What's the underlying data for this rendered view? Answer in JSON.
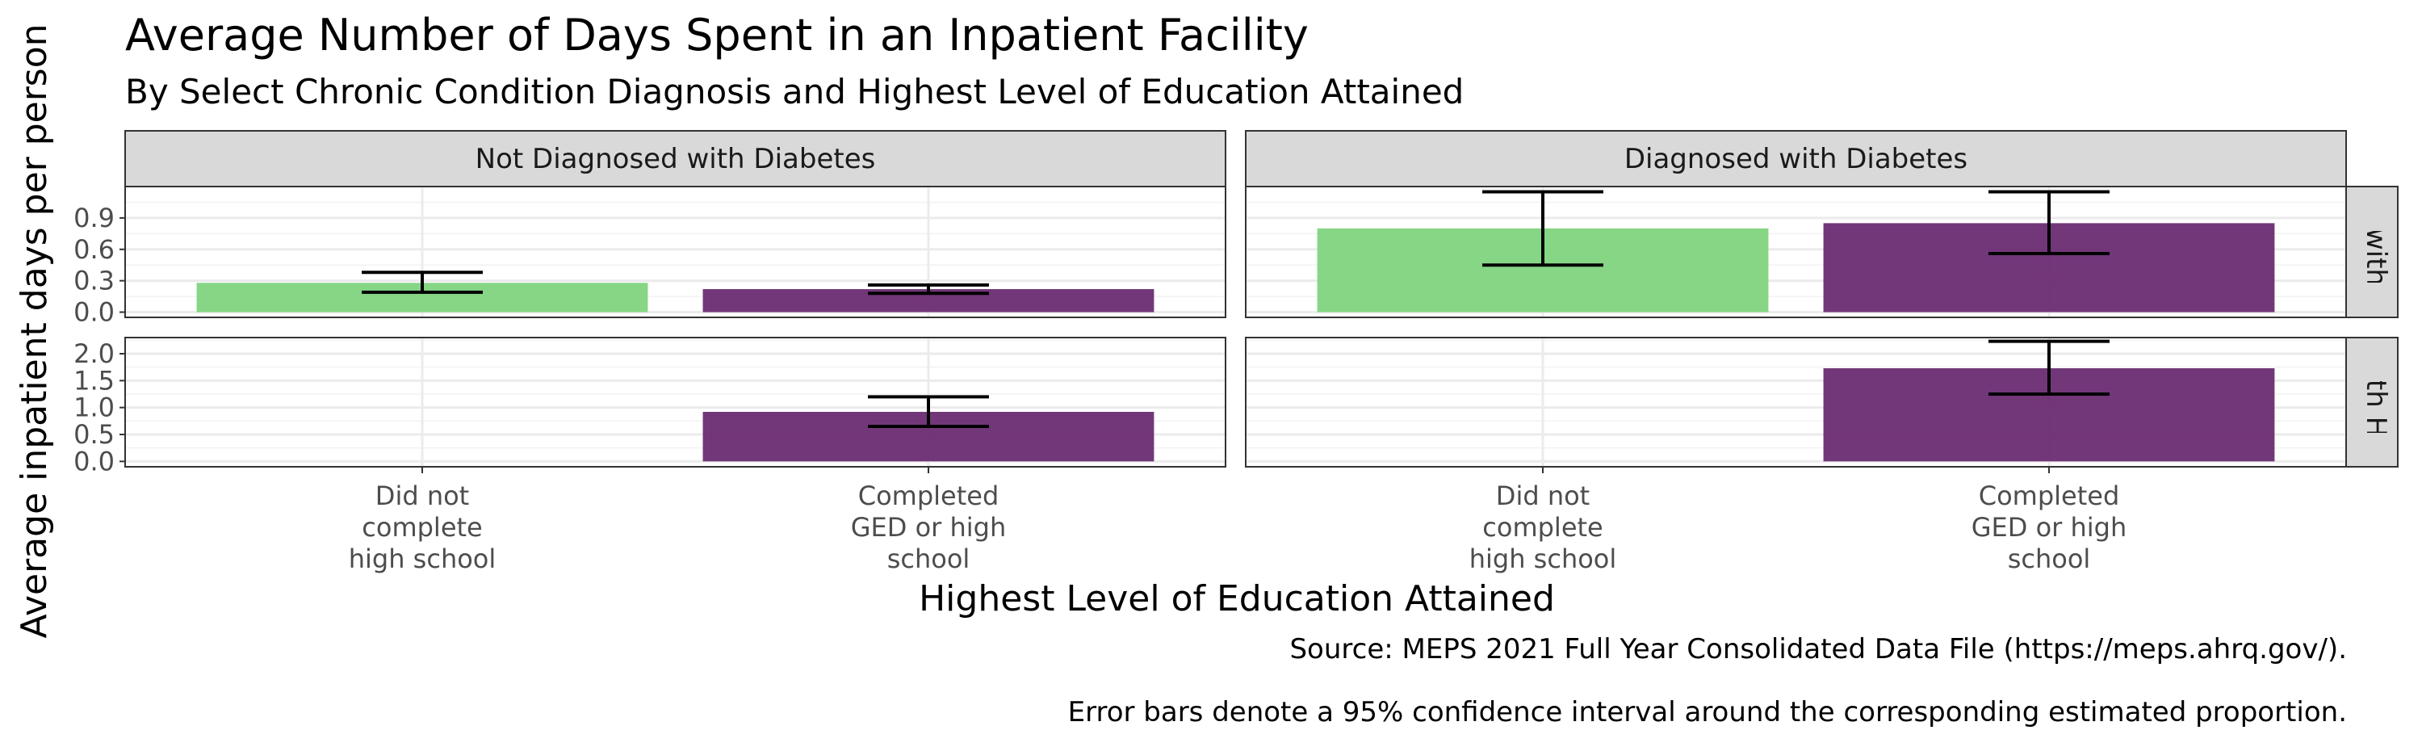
{
  "title": "Average Number of Days Spent in an Inpatient Facility",
  "subtitle": "By Select Chronic Condition Diagnosis and Highest Level of Education Attained",
  "colors": {
    "did_not_complete": "#7fd47f",
    "completed": "#6a2c72"
  },
  "chart_data": {
    "type": "bar",
    "xlabel": "Highest Level of Education Attained",
    "ylabel": "Average inpatient days per person",
    "categories": [
      "Did not\ncomplete\nhigh school",
      "Completed\nGED or high\nschool"
    ],
    "columns": [
      "Not Diagnosed with Diabetes",
      "Diagnosed with Diabetes"
    ],
    "rows": [
      {
        "label": "Not Diagnosed with Heart Disease",
        "strip_visible": "ed with H",
        "ylim": [
          -0.05,
          1.2
        ],
        "ticks": [
          0.0,
          0.3,
          0.6,
          0.9
        ],
        "tick_labels": [
          "0.0",
          "0.3",
          "0.6",
          "0.9"
        ]
      },
      {
        "label": "Diagnosed with Heart Disease",
        "strip_visible": "with Hea",
        "ylim": [
          -0.1,
          2.3
        ],
        "ticks": [
          0.0,
          0.5,
          1.0,
          1.5,
          2.0
        ],
        "tick_labels": [
          "0.0",
          "0.5",
          "1.0",
          "1.5",
          "2.0"
        ]
      }
    ],
    "panels": [
      {
        "row": 0,
        "col": 0,
        "bars": [
          {
            "category": 0,
            "value": 0.28,
            "ci_low": 0.19,
            "ci_high": 0.38
          },
          {
            "category": 1,
            "value": 0.22,
            "ci_low": 0.18,
            "ci_high": 0.26
          }
        ]
      },
      {
        "row": 0,
        "col": 1,
        "bars": [
          {
            "category": 0,
            "value": 0.8,
            "ci_low": 0.45,
            "ci_high": 1.15
          },
          {
            "category": 1,
            "value": 0.85,
            "ci_low": 0.56,
            "ci_high": 1.15
          }
        ]
      },
      {
        "row": 1,
        "col": 0,
        "bars": [
          {
            "category": 1,
            "value": 0.92,
            "ci_low": 0.65,
            "ci_high": 1.2
          }
        ]
      },
      {
        "row": 1,
        "col": 1,
        "bars": [
          {
            "category": 1,
            "value": 1.73,
            "ci_low": 1.25,
            "ci_high": 2.23
          }
        ]
      }
    ]
  },
  "captions": {
    "source": "Source: MEPS 2021 Full Year Consolidated Data File (https://meps.ahrq.gov/).",
    "note": "Error bars denote a 95% confidence interval around the corresponding estimated proportion."
  }
}
